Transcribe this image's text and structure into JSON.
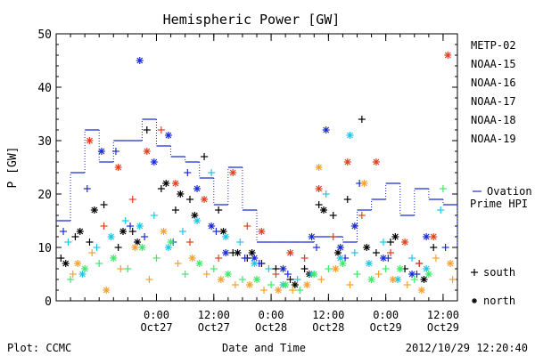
{
  "chart_data": {
    "type": "scatter",
    "title": "Hemispheric Power [GW]",
    "xlabel": "Date and Time",
    "ylabel": "P [GW]",
    "xlim": [
      "2012-10-26T03:00",
      "2012-10-29T15:00"
    ],
    "ylim": [
      0,
      50
    ],
    "y_ticks": [
      0,
      10,
      20,
      30,
      40,
      50
    ],
    "x_ticks": [
      {
        "time": "2012-10-27T00:00",
        "label_top": "0:00",
        "label_bottom": "Oct27"
      },
      {
        "time": "2012-10-27T12:00",
        "label_top": "12:00",
        "label_bottom": "Oct27"
      },
      {
        "time": "2012-10-28T00:00",
        "label_top": "0:00",
        "label_bottom": "Oct28"
      },
      {
        "time": "2012-10-28T12:00",
        "label_top": "12:00",
        "label_bottom": "Oct28"
      },
      {
        "time": "2012-10-29T00:00",
        "label_top": "0:00",
        "label_bottom": "Oct29"
      },
      {
        "time": "2012-10-29T12:00",
        "label_top": "12:00",
        "label_bottom": "Oct29"
      }
    ],
    "legend": [
      {
        "name": "METP-02",
        "color": "#000000"
      },
      {
        "name": "NOAA-15",
        "color": "#1a2bd6"
      },
      {
        "name": "NOAA-16",
        "color": "#22c4e6"
      },
      {
        "name": "NOAA-17",
        "color": "#3fe86a"
      },
      {
        "name": "NOAA-18",
        "color": "#f5a030"
      },
      {
        "name": "NOAA-19",
        "color": "#e0401c"
      }
    ],
    "legend_placement": "right",
    "marker_legend": [
      {
        "symbol": "+",
        "label": "south"
      },
      {
        "symbol": "*",
        "label": "north"
      }
    ],
    "ovation": {
      "label_line1": "Ovation",
      "label_line2": "Prime HPI",
      "color": "#1a2bd6",
      "points": [
        [
          "2012-10-26T03:00",
          15
        ],
        [
          "2012-10-26T06:00",
          24
        ],
        [
          "2012-10-26T09:00",
          32
        ],
        [
          "2012-10-26T12:00",
          26
        ],
        [
          "2012-10-26T15:00",
          30
        ],
        [
          "2012-10-26T18:00",
          30
        ],
        [
          "2012-10-26T21:00",
          34
        ],
        [
          "2012-10-27T00:00",
          29
        ],
        [
          "2012-10-27T03:00",
          27
        ],
        [
          "2012-10-27T06:00",
          26
        ],
        [
          "2012-10-27T09:00",
          23
        ],
        [
          "2012-10-27T12:00",
          18
        ],
        [
          "2012-10-27T15:00",
          25
        ],
        [
          "2012-10-27T18:00",
          17
        ],
        [
          "2012-10-27T21:00",
          11
        ],
        [
          "2012-10-28T00:00",
          11
        ],
        [
          "2012-10-28T03:00",
          11
        ],
        [
          "2012-10-28T06:00",
          11
        ],
        [
          "2012-10-28T09:00",
          12
        ],
        [
          "2012-10-28T12:00",
          12
        ],
        [
          "2012-10-28T15:00",
          11
        ],
        [
          "2012-10-28T18:00",
          17
        ],
        [
          "2012-10-28T21:00",
          19
        ],
        [
          "2012-10-29T00:00",
          22
        ],
        [
          "2012-10-29T03:00",
          16
        ],
        [
          "2012-10-29T06:00",
          21
        ],
        [
          "2012-10-29T09:00",
          19
        ],
        [
          "2012-10-29T12:00",
          18
        ],
        [
          "2012-10-29T15:00",
          10
        ]
      ]
    },
    "series": [
      {
        "name": "METP-02",
        "south": [
          [
            "2012-10-26T04:00",
            8
          ],
          [
            "2012-10-26T07:00",
            12
          ],
          [
            "2012-10-26T10:00",
            11
          ],
          [
            "2012-10-26T13:00",
            18
          ],
          [
            "2012-10-26T16:00",
            10
          ],
          [
            "2012-10-26T19:00",
            13
          ],
          [
            "2012-10-26T22:00",
            32
          ],
          [
            "2012-10-27T01:00",
            21
          ],
          [
            "2012-10-27T04:00",
            17
          ],
          [
            "2012-10-27T07:00",
            19
          ],
          [
            "2012-10-27T10:00",
            27
          ],
          [
            "2012-10-27T13:00",
            17
          ],
          [
            "2012-10-27T16:00",
            9
          ],
          [
            "2012-10-27T19:00",
            8
          ],
          [
            "2012-10-27T22:00",
            7
          ],
          [
            "2012-10-28T01:00",
            6
          ],
          [
            "2012-10-28T04:00",
            4
          ],
          [
            "2012-10-28T07:00",
            6
          ],
          [
            "2012-10-28T10:00",
            18
          ],
          [
            "2012-10-28T13:00",
            16
          ],
          [
            "2012-10-28T16:00",
            19
          ],
          [
            "2012-10-28T19:00",
            34
          ],
          [
            "2012-10-28T22:00",
            9
          ],
          [
            "2012-10-29T01:00",
            11
          ],
          [
            "2012-10-29T04:00",
            6
          ],
          [
            "2012-10-29T07:00",
            7
          ],
          [
            "2012-10-29T10:00",
            10
          ]
        ],
        "north": [
          [
            "2012-10-26T05:00",
            7
          ],
          [
            "2012-10-26T08:00",
            13
          ],
          [
            "2012-10-26T11:00",
            17
          ],
          [
            "2012-10-26T17:00",
            13
          ],
          [
            "2012-10-26T20:00",
            11
          ],
          [
            "2012-10-27T02:00",
            22
          ],
          [
            "2012-10-27T05:00",
            20
          ],
          [
            "2012-10-27T08:00",
            16
          ],
          [
            "2012-10-27T14:00",
            13
          ],
          [
            "2012-10-27T17:00",
            9
          ],
          [
            "2012-10-27T20:00",
            9
          ],
          [
            "2012-10-28T05:00",
            3
          ],
          [
            "2012-10-28T08:00",
            5
          ],
          [
            "2012-10-28T11:00",
            17
          ],
          [
            "2012-10-28T14:00",
            9
          ],
          [
            "2012-10-28T20:00",
            10
          ],
          [
            "2012-10-29T02:00",
            12
          ],
          [
            "2012-10-29T08:00",
            4
          ]
        ]
      },
      {
        "name": "NOAA-15",
        "south": [
          [
            "2012-10-26T04:30",
            13
          ],
          [
            "2012-10-26T09:30",
            21
          ],
          [
            "2012-10-26T15:30",
            28
          ],
          [
            "2012-10-26T18:30",
            14
          ],
          [
            "2012-10-26T21:30",
            12
          ],
          [
            "2012-10-27T03:30",
            11
          ],
          [
            "2012-10-27T06:30",
            24
          ],
          [
            "2012-10-27T12:30",
            13
          ],
          [
            "2012-10-27T18:30",
            8
          ],
          [
            "2012-10-27T21:30",
            7
          ],
          [
            "2012-10-28T03:30",
            5
          ],
          [
            "2012-10-28T09:30",
            10
          ],
          [
            "2012-10-28T15:30",
            8
          ],
          [
            "2012-10-28T18:30",
            22
          ],
          [
            "2012-10-29T00:30",
            8
          ],
          [
            "2012-10-29T06:30",
            5
          ],
          [
            "2012-10-29T12:30",
            10
          ]
        ],
        "north": [
          [
            "2012-10-26T12:30",
            28
          ],
          [
            "2012-10-26T20:30",
            45
          ],
          [
            "2012-10-26T23:30",
            26
          ],
          [
            "2012-10-27T02:30",
            31
          ],
          [
            "2012-10-27T08:30",
            21
          ],
          [
            "2012-10-27T11:30",
            14
          ],
          [
            "2012-10-27T14:30",
            9
          ],
          [
            "2012-10-27T20:30",
            8
          ],
          [
            "2012-10-28T02:30",
            6
          ],
          [
            "2012-10-28T08:30",
            12
          ],
          [
            "2012-10-28T11:30",
            32
          ],
          [
            "2012-10-28T14:30",
            10
          ],
          [
            "2012-10-28T17:30",
            14
          ],
          [
            "2012-10-28T23:30",
            8
          ],
          [
            "2012-10-29T05:30",
            5
          ],
          [
            "2012-10-29T08:30",
            12
          ]
        ]
      },
      {
        "name": "NOAA-16",
        "south": [
          [
            "2012-10-26T05:30",
            11
          ],
          [
            "2012-10-26T11:30",
            10
          ],
          [
            "2012-10-26T17:30",
            15
          ],
          [
            "2012-10-26T23:30",
            16
          ],
          [
            "2012-10-27T05:30",
            13
          ],
          [
            "2012-10-27T11:30",
            24
          ],
          [
            "2012-10-27T17:30",
            11
          ],
          [
            "2012-10-27T23:30",
            6
          ],
          [
            "2012-10-28T05:30",
            4
          ],
          [
            "2012-10-28T11:30",
            20
          ],
          [
            "2012-10-28T17:30",
            9
          ],
          [
            "2012-10-28T23:30",
            11
          ],
          [
            "2012-10-29T05:30",
            8
          ],
          [
            "2012-10-29T11:30",
            17
          ]
        ],
        "north": [
          [
            "2012-10-26T08:30",
            5
          ],
          [
            "2012-10-26T14:30",
            12
          ],
          [
            "2012-10-26T20:30",
            14
          ],
          [
            "2012-10-27T02:30",
            10
          ],
          [
            "2012-10-27T08:30",
            15
          ],
          [
            "2012-10-27T14:30",
            12
          ],
          [
            "2012-10-27T20:30",
            7
          ],
          [
            "2012-10-28T02:30",
            3
          ],
          [
            "2012-10-28T08:30",
            5
          ],
          [
            "2012-10-28T14:30",
            8
          ],
          [
            "2012-10-28T16:30",
            31
          ],
          [
            "2012-10-28T20:30",
            7
          ],
          [
            "2012-10-29T02:30",
            4
          ],
          [
            "2012-10-29T08:30",
            6
          ]
        ]
      },
      {
        "name": "NOAA-17",
        "south": [
          [
            "2012-10-26T06:00",
            4
          ],
          [
            "2012-10-26T12:00",
            7
          ],
          [
            "2012-10-26T18:00",
            6
          ],
          [
            "2012-10-27T00:00",
            8
          ],
          [
            "2012-10-27T06:00",
            5
          ],
          [
            "2012-10-27T12:00",
            6
          ],
          [
            "2012-10-27T18:00",
            4
          ],
          [
            "2012-10-28T00:00",
            3
          ],
          [
            "2012-10-28T06:00",
            2
          ],
          [
            "2012-10-28T12:00",
            6
          ],
          [
            "2012-10-28T18:00",
            5
          ],
          [
            "2012-10-29T00:00",
            6
          ],
          [
            "2012-10-29T06:00",
            4
          ],
          [
            "2012-10-29T12:00",
            21
          ]
        ],
        "north": [
          [
            "2012-10-26T09:00",
            6
          ],
          [
            "2012-10-26T15:00",
            8
          ],
          [
            "2012-10-26T21:00",
            10
          ],
          [
            "2012-10-27T03:00",
            11
          ],
          [
            "2012-10-27T09:00",
            7
          ],
          [
            "2012-10-27T15:00",
            5
          ],
          [
            "2012-10-27T21:00",
            4
          ],
          [
            "2012-10-28T03:00",
            3
          ],
          [
            "2012-10-28T09:00",
            5
          ],
          [
            "2012-10-28T15:00",
            7
          ],
          [
            "2012-10-28T21:00",
            4
          ],
          [
            "2012-10-29T03:00",
            6
          ],
          [
            "2012-10-29T09:00",
            5
          ]
        ]
      },
      {
        "name": "NOAA-18",
        "south": [
          [
            "2012-10-26T06:30",
            5
          ],
          [
            "2012-10-26T10:30",
            9
          ],
          [
            "2012-10-26T16:30",
            6
          ],
          [
            "2012-10-26T22:30",
            4
          ],
          [
            "2012-10-27T04:30",
            7
          ],
          [
            "2012-10-27T10:30",
            5
          ],
          [
            "2012-10-27T16:30",
            3
          ],
          [
            "2012-10-27T22:30",
            2
          ],
          [
            "2012-10-28T04:30",
            2
          ],
          [
            "2012-10-28T10:30",
            4
          ],
          [
            "2012-10-28T16:30",
            3
          ],
          [
            "2012-10-28T22:30",
            5
          ],
          [
            "2012-10-29T04:30",
            3
          ],
          [
            "2012-10-29T10:30",
            8
          ],
          [
            "2012-10-29T14:00",
            4
          ]
        ],
        "north": [
          [
            "2012-10-26T07:30",
            7
          ],
          [
            "2012-10-26T13:30",
            2
          ],
          [
            "2012-10-26T19:30",
            10
          ],
          [
            "2012-10-27T01:30",
            13
          ],
          [
            "2012-10-27T07:30",
            8
          ],
          [
            "2012-10-27T13:30",
            4
          ],
          [
            "2012-10-27T19:30",
            3
          ],
          [
            "2012-10-28T01:30",
            2
          ],
          [
            "2012-10-28T07:30",
            3
          ],
          [
            "2012-10-28T10:00",
            25
          ],
          [
            "2012-10-28T13:30",
            6
          ],
          [
            "2012-10-28T19:30",
            22
          ],
          [
            "2012-10-29T01:30",
            4
          ],
          [
            "2012-10-29T07:30",
            2
          ],
          [
            "2012-10-29T13:30",
            7
          ]
        ]
      },
      {
        "name": "NOAA-19",
        "north": [
          [
            "2012-10-26T10:00",
            30
          ],
          [
            "2012-10-26T16:00",
            25
          ],
          [
            "2012-10-26T22:00",
            28
          ],
          [
            "2012-10-27T04:00",
            22
          ],
          [
            "2012-10-27T10:00",
            19
          ],
          [
            "2012-10-27T16:00",
            24
          ],
          [
            "2012-10-27T22:00",
            13
          ],
          [
            "2012-10-28T04:00",
            9
          ],
          [
            "2012-10-28T10:00",
            21
          ],
          [
            "2012-10-28T16:00",
            26
          ],
          [
            "2012-10-28T22:00",
            26
          ],
          [
            "2012-10-29T04:00",
            11
          ],
          [
            "2012-10-29T10:00",
            12
          ],
          [
            "2012-10-29T13:00",
            46
          ]
        ],
        "south": [
          [
            "2012-10-26T13:00",
            14
          ],
          [
            "2012-10-26T19:00",
            19
          ],
          [
            "2012-10-27T01:00",
            32
          ],
          [
            "2012-10-27T07:00",
            11
          ],
          [
            "2012-10-27T13:00",
            8
          ],
          [
            "2012-10-27T19:00",
            14
          ],
          [
            "2012-10-28T01:00",
            5
          ],
          [
            "2012-10-28T07:00",
            8
          ],
          [
            "2012-10-28T13:00",
            12
          ],
          [
            "2012-10-28T19:00",
            16
          ],
          [
            "2012-10-29T01:00",
            9
          ],
          [
            "2012-10-29T07:00",
            7
          ]
        ]
      }
    ]
  },
  "footer": {
    "plot_credit": "Plot: CCMC",
    "timestamp": "2012/10/29 12:20:40"
  }
}
